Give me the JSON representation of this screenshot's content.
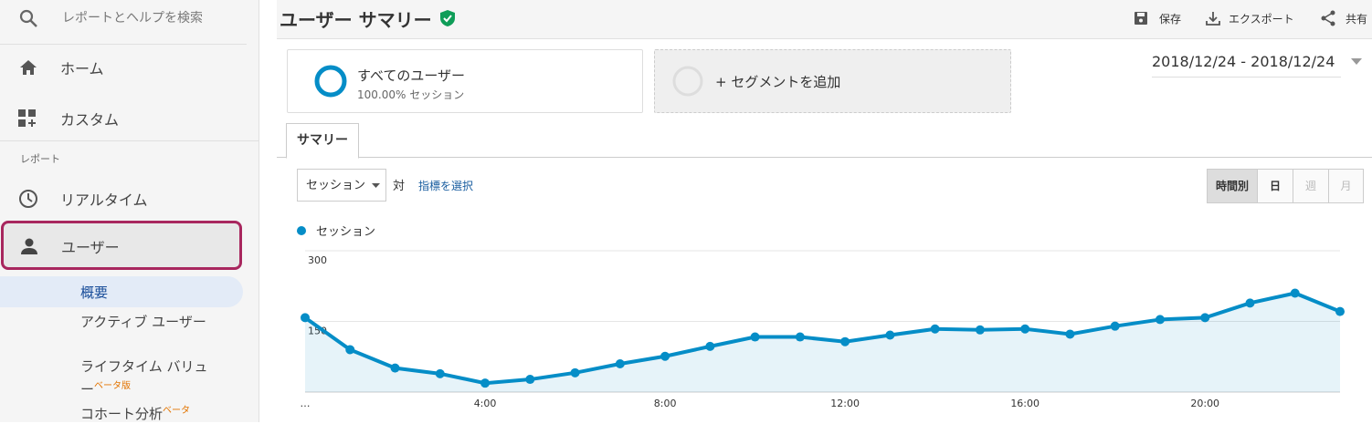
{
  "sidebar": {
    "search_placeholder": "レポートとヘルプを検索",
    "home": "ホーム",
    "custom": "カスタム",
    "section": "レポート",
    "realtime": "リアルタイム",
    "users": "ユーザー",
    "subitems": [
      {
        "label": "概要"
      },
      {
        "label": "アクティブ ユーザー"
      },
      {
        "label": "ライフタイム バリュー",
        "badge": "ベータ版"
      },
      {
        "label": "コホート分析",
        "badge": "ベータ"
      }
    ]
  },
  "header": {
    "title": "ユーザー サマリー",
    "actions": [
      "保存",
      "エクスポート",
      "共有"
    ]
  },
  "segments": {
    "all_users": "すべてのユーザー",
    "all_users_share": "100.00% セッション",
    "add": "+ セグメントを追加"
  },
  "date_range": "2018/12/24 - 2018/12/24",
  "tab": "サマリー",
  "controls": {
    "metric": "セッション",
    "versus": "対",
    "select_metric": "指標を選択",
    "granularity": [
      "時間別",
      "日",
      "週",
      "月"
    ]
  },
  "chart_data": {
    "type": "line",
    "categories": [
      "…",
      null,
      null,
      null,
      "4:00",
      null,
      null,
      null,
      "8:00",
      null,
      null,
      null,
      "12:00",
      null,
      null,
      null,
      "16:00",
      null,
      null,
      null,
      "20:00",
      null,
      null,
      null
    ],
    "series": [
      {
        "name": "セッション",
        "color": "#058dc7",
        "values": [
          158,
          90,
          51,
          39,
          19,
          27,
          41,
          60,
          76,
          97,
          117,
          117,
          107,
          121,
          134,
          132,
          134,
          123,
          140,
          154,
          158,
          189,
          210,
          171
        ]
      }
    ],
    "ylim": [
      0,
      300
    ],
    "yticks": [
      150,
      300
    ],
    "grid": true
  }
}
